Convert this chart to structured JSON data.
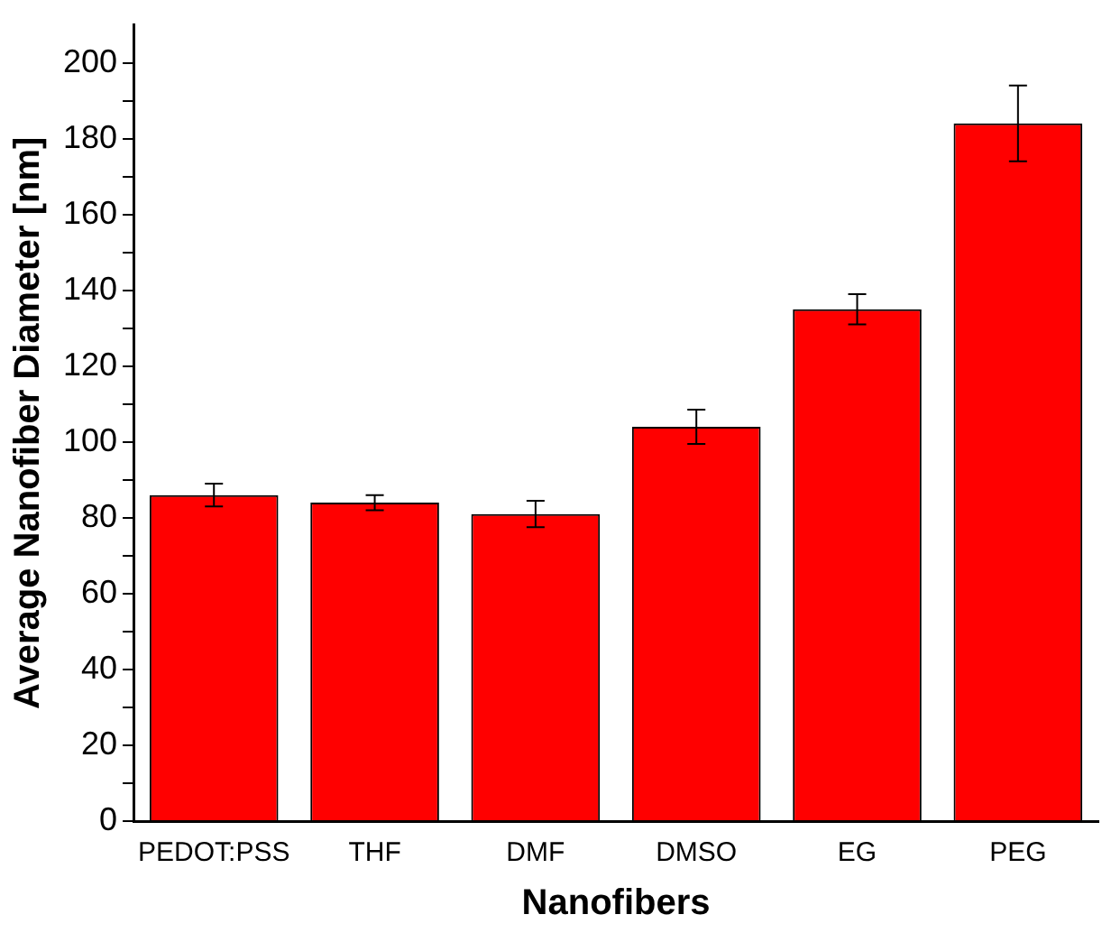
{
  "chart_data": {
    "type": "bar",
    "xlabel": "Nanofibers",
    "ylabel": "Average Nanofiber Diameter [nm]",
    "categories": [
      "PEDOT:PSS",
      "THF",
      "DMF",
      "DMSO",
      "EG",
      "PEG"
    ],
    "values": [
      86,
      84,
      81,
      104,
      135,
      184
    ],
    "errors": [
      3,
      2,
      3.5,
      4.5,
      4,
      10
    ],
    "color": "#ff0000",
    "ylim": [
      0,
      210
    ],
    "yticks": [
      0,
      {
        "value": 10,
        "label": null
      },
      20,
      {
        "value": 30,
        "label": null
      },
      40,
      {
        "value": 50,
        "label": null
      },
      60,
      {
        "value": 70,
        "label": null
      },
      80,
      {
        "value": 90,
        "label": null
      },
      100,
      {
        "value": 110,
        "label": null
      },
      120,
      {
        "value": 130,
        "label": null
      },
      140,
      {
        "value": 150,
        "label": null
      },
      160,
      {
        "value": 170,
        "label": null
      },
      180,
      {
        "value": 190,
        "label": null
      },
      200
    ],
    "grid": false,
    "legend": false
  }
}
